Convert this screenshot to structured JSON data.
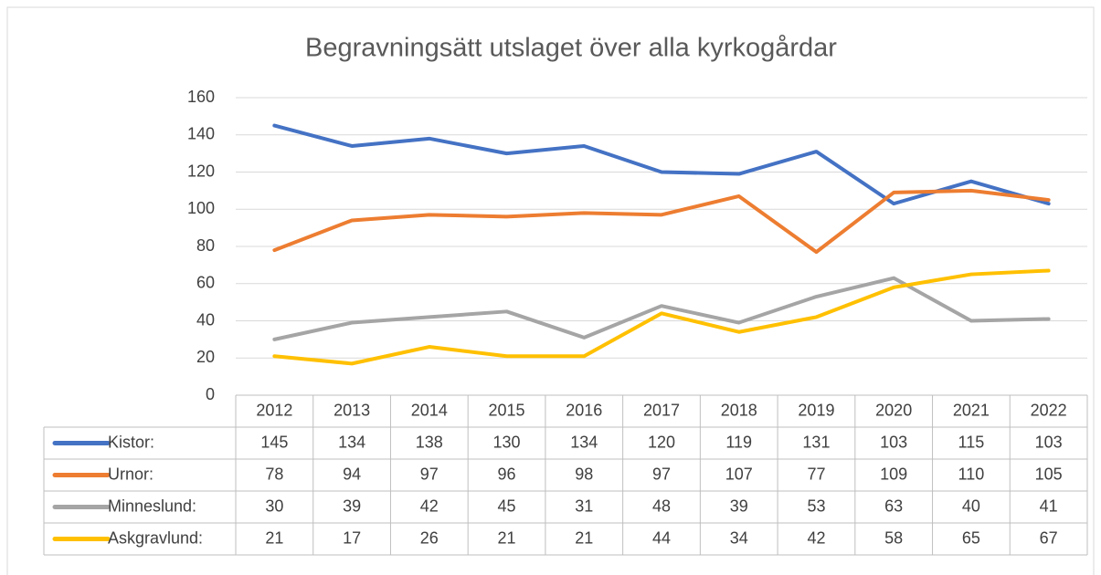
{
  "chart_data": {
    "type": "line",
    "title": "Begravningsätt utslaget över alla kyrkogårdar",
    "categories": [
      "2012",
      "2013",
      "2014",
      "2015",
      "2016",
      "2017",
      "2018",
      "2019",
      "2020",
      "2021",
      "2022"
    ],
    "series": [
      {
        "name": "Kistor:",
        "color": "#4472c4",
        "values": [
          145,
          134,
          138,
          130,
          134,
          120,
          119,
          131,
          103,
          115,
          103
        ]
      },
      {
        "name": "Urnor:",
        "color": "#ed7d31",
        "values": [
          78,
          94,
          97,
          96,
          98,
          97,
          107,
          77,
          109,
          110,
          105
        ]
      },
      {
        "name": "Minneslund:",
        "color": "#a5a5a5",
        "values": [
          30,
          39,
          42,
          45,
          31,
          48,
          39,
          53,
          63,
          40,
          41
        ]
      },
      {
        "name": "Askgravlund:",
        "color": "#ffc000",
        "values": [
          21,
          17,
          26,
          21,
          21,
          44,
          34,
          42,
          58,
          65,
          67
        ]
      }
    ],
    "ylim": [
      0,
      160
    ],
    "yticks": [
      0,
      20,
      40,
      60,
      80,
      100,
      120,
      140,
      160
    ],
    "grid": true,
    "data_table": true
  }
}
